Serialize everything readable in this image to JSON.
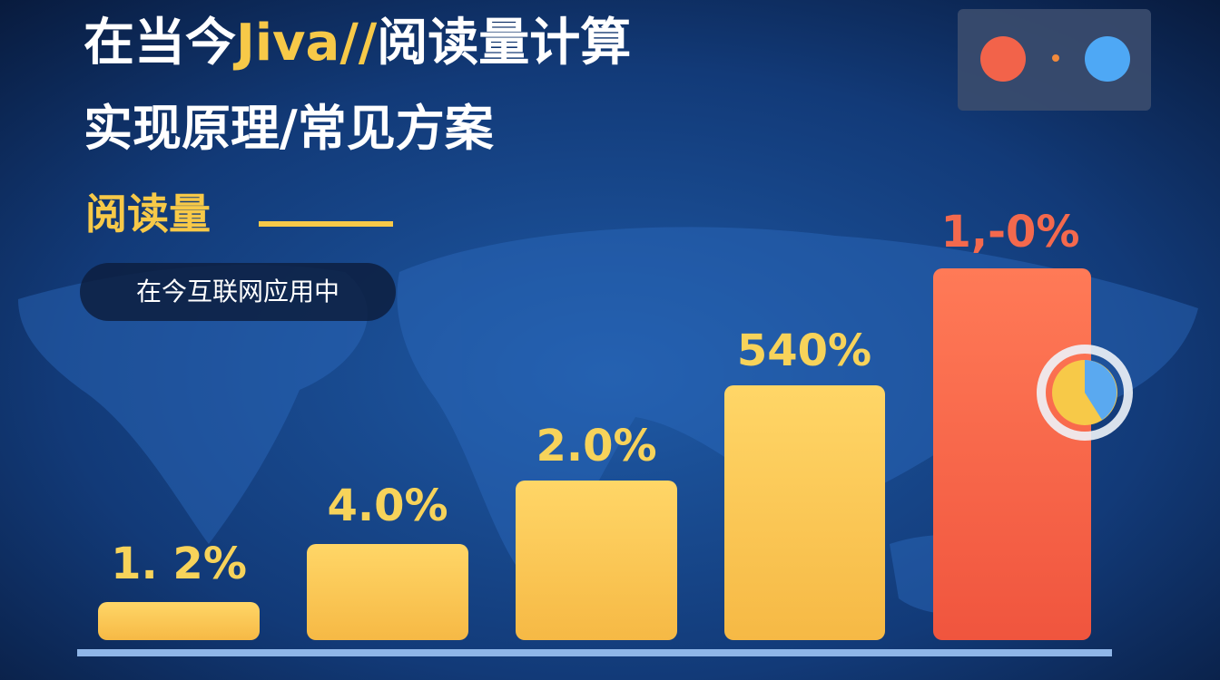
{
  "header": {
    "title_line1": [
      "在当今",
      "Jiva//",
      "阅读量计算"
    ],
    "title_line2": "实现原理/常见方案",
    "subtitle": "阅读量",
    "pill": "在今互联网应用中"
  },
  "bars": [
    {
      "label": "1. 2%"
    },
    {
      "label": "4.0%"
    },
    {
      "label": "2.0%"
    },
    {
      "label": "540%"
    },
    {
      "label": "1,-0%"
    }
  ]
}
